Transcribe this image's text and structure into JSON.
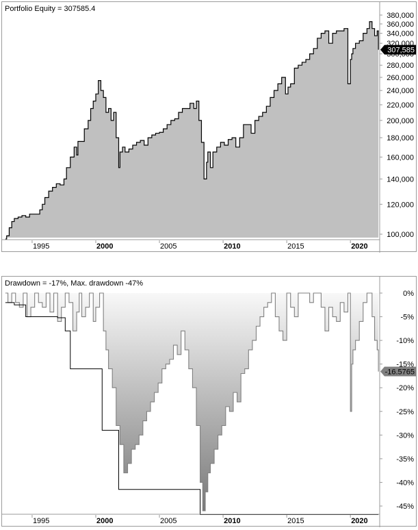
{
  "chart_data": [
    {
      "type": "area",
      "title": "Portfolio Equity = 307585.4",
      "xlabel": "",
      "ylabel": "",
      "yscale": "log",
      "ylim": [
        96000,
        392000
      ],
      "xlim": [
        1992.8,
        2022.3
      ],
      "x_ticks": [
        "1995",
        "2000",
        "2005",
        "2010",
        "2015",
        "2020"
      ],
      "x_ticks_bold": [
        "2000",
        "2010",
        "2020"
      ],
      "y_ticks": [
        "100,000",
        "120,000",
        "140,000",
        "160,000",
        "180,000",
        "200,000",
        "220,000",
        "240,000",
        "260,000",
        "280,000",
        "300,000",
        "320,000",
        "340,000",
        "360,000",
        "380,000"
      ],
      "y_tick_values": [
        100000,
        120000,
        140000,
        160000,
        180000,
        200000,
        220000,
        240000,
        260000,
        280000,
        300000,
        320000,
        340000,
        360000,
        380000
      ],
      "last_value_label": "307,585",
      "last_value": 307585.4,
      "fill_color": "#c0c0c0",
      "line_color": "#000000",
      "grid": false,
      "series": [
        {
          "name": "Portfolio Equity",
          "x": [
            1992.9,
            1993.0,
            1993.2,
            1993.4,
            1993.6,
            1993.9,
            1994.2,
            1994.5,
            1994.8,
            1995.0,
            1995.3,
            1995.6,
            1995.8,
            1996.0,
            1996.3,
            1996.6,
            1996.9,
            1997.2,
            1997.5,
            1997.7,
            1998.0,
            1998.3,
            1998.5,
            1998.6,
            1998.8,
            1999.1,
            1999.4,
            1999.6,
            1999.8,
            2000.0,
            2000.2,
            2000.4,
            2000.6,
            2000.8,
            2001.0,
            2001.2,
            2001.4,
            2001.6,
            2001.8,
            2001.9,
            2002.1,
            2002.3,
            2002.6,
            2002.9,
            2003.2,
            2003.5,
            2003.8,
            2004.1,
            2004.4,
            2004.7,
            2005.0,
            2005.3,
            2005.6,
            2005.9,
            2006.2,
            2006.5,
            2006.8,
            2007.1,
            2007.4,
            2007.7,
            2007.9,
            2008.1,
            2008.3,
            2008.5,
            2008.7,
            2008.8,
            2009.0,
            2009.2,
            2009.5,
            2009.8,
            2010.1,
            2010.4,
            2010.7,
            2011.0,
            2011.3,
            2011.6,
            2011.9,
            2012.2,
            2012.5,
            2012.8,
            2013.1,
            2013.4,
            2013.7,
            2014.0,
            2014.3,
            2014.6,
            2014.9,
            2015.1,
            2015.3,
            2015.6,
            2015.9,
            2016.2,
            2016.5,
            2016.8,
            2017.1,
            2017.4,
            2017.7,
            2018.0,
            2018.3,
            2018.6,
            2018.9,
            2019.2,
            2019.5,
            2019.8,
            2020.0,
            2020.1,
            2020.2,
            2020.4,
            2020.7,
            2021.0,
            2021.3,
            2021.5,
            2021.7,
            2021.9,
            2022.1,
            2022.2
          ],
          "values": [
            97000,
            99000,
            104000,
            108000,
            110000,
            111000,
            112000,
            111000,
            113000,
            113000,
            113000,
            116000,
            120000,
            125000,
            130000,
            133000,
            136000,
            135000,
            140000,
            150000,
            160000,
            170000,
            162000,
            176000,
            176000,
            190000,
            200000,
            215000,
            225000,
            235000,
            255000,
            240000,
            230000,
            210000,
            215000,
            200000,
            210000,
            180000,
            150000,
            165000,
            170000,
            165000,
            168000,
            172000,
            175000,
            177000,
            172000,
            180000,
            183000,
            185000,
            186000,
            190000,
            195000,
            200000,
            202000,
            210000,
            215000,
            215000,
            222000,
            215000,
            225000,
            200000,
            175000,
            140000,
            155000,
            165000,
            150000,
            165000,
            170000,
            175000,
            172000,
            178000,
            180000,
            170000,
            180000,
            195000,
            195000,
            185000,
            200000,
            205000,
            210000,
            218000,
            230000,
            240000,
            250000,
            260000,
            235000,
            245000,
            250000,
            275000,
            280000,
            285000,
            290000,
            300000,
            310000,
            330000,
            340000,
            345000,
            320000,
            340000,
            345000,
            345000,
            350000,
            250000,
            290000,
            300000,
            310000,
            320000,
            325000,
            340000,
            350000,
            365000,
            350000,
            335000,
            345000,
            307585
          ]
        }
      ]
    },
    {
      "type": "area",
      "title": "Drawdown = -17%, Max. drawdown -47%",
      "xlabel": "",
      "ylabel": "",
      "ylim": [
        -49,
        2
      ],
      "xlim": [
        1992.8,
        2022.3
      ],
      "x_ticks": [
        "1995",
        "2000",
        "2005",
        "2010",
        "2015",
        "2020"
      ],
      "x_ticks_bold": [
        "2000",
        "2010",
        "2020"
      ],
      "y_ticks": [
        "0%",
        "-5%",
        "-10%",
        "-15%",
        "-20%",
        "-25%",
        "-30%",
        "-35%",
        "-40%",
        "-45%"
      ],
      "y_tick_values": [
        0,
        -5,
        -10,
        -15,
        -20,
        -25,
        -30,
        -35,
        -40,
        -45
      ],
      "last_value_label": "-16.5765",
      "last_value": -16.5765,
      "line_color": "#808080",
      "max_dd_line_color": "#000000",
      "gradient": [
        "#f8f8f8",
        "#777777"
      ],
      "grid": false,
      "series": [
        {
          "name": "Drawdown",
          "x": [
            1992.9,
            1993.1,
            1993.4,
            1993.7,
            1994.0,
            1994.3,
            1994.6,
            1994.9,
            1995.2,
            1995.5,
            1995.8,
            1996.1,
            1996.4,
            1996.7,
            1997.0,
            1997.3,
            1997.6,
            1997.9,
            1998.2,
            1998.5,
            1998.7,
            1998.9,
            1999.2,
            1999.5,
            1999.8,
            2000.0,
            2000.3,
            2000.6,
            2000.8,
            2001.0,
            2001.3,
            2001.6,
            2001.9,
            2002.2,
            2002.5,
            2002.8,
            2003.1,
            2003.4,
            2003.7,
            2004.0,
            2004.3,
            2004.6,
            2004.9,
            2005.2,
            2005.5,
            2005.8,
            2006.1,
            2006.4,
            2006.7,
            2007.0,
            2007.3,
            2007.6,
            2007.9,
            2008.2,
            2008.4,
            2008.6,
            2008.8,
            2009.0,
            2009.3,
            2009.6,
            2009.9,
            2010.2,
            2010.5,
            2010.8,
            2011.1,
            2011.4,
            2011.7,
            2012.0,
            2012.3,
            2012.6,
            2012.9,
            2013.2,
            2013.5,
            2013.8,
            2014.1,
            2014.4,
            2014.7,
            2015.0,
            2015.3,
            2015.6,
            2015.9,
            2016.2,
            2016.5,
            2016.8,
            2017.1,
            2017.4,
            2017.7,
            2018.0,
            2018.3,
            2018.6,
            2018.9,
            2019.2,
            2019.5,
            2019.8,
            2020.0,
            2020.1,
            2020.2,
            2020.4,
            2020.7,
            2021.0,
            2021.3,
            2021.5,
            2021.7,
            2021.9,
            2022.1,
            2022.2
          ],
          "values": [
            0,
            -2,
            0,
            -2,
            -3,
            0,
            -5,
            -3,
            0,
            -2,
            -3,
            0,
            -4,
            0,
            -6,
            -3,
            0,
            -2,
            -8,
            -4,
            0,
            -5,
            -3,
            0,
            -6,
            -3,
            0,
            -8,
            -12,
            -16,
            -20,
            -28,
            -32,
            -38,
            -36,
            -33,
            -32,
            -30,
            -27,
            -25,
            -23,
            -21,
            -19,
            -16,
            -15,
            -14,
            -11,
            -13,
            -8,
            -12,
            -16,
            -20,
            -28,
            -40,
            -46,
            -42,
            -38,
            -36,
            -33,
            -30,
            -28,
            -24,
            -25,
            -21,
            -23,
            -17,
            -16,
            -12,
            -10,
            -7,
            -5,
            -3,
            -2,
            0,
            -5,
            -8,
            -10,
            0,
            -3,
            -5,
            0,
            0,
            0,
            -2,
            0,
            0,
            -3,
            -8,
            -3,
            -5,
            -6,
            -2,
            -4,
            0,
            -25,
            -15,
            -12,
            -10,
            -6,
            -2,
            0,
            0,
            -5,
            -10,
            -12,
            -16.58
          ]
        },
        {
          "name": "Max drawdown",
          "x": [
            1992.9,
            1993.6,
            1993.6,
            1994.5,
            1994.5,
            1997.0,
            1997.0,
            1997.6,
            1997.6,
            1998.0,
            1998.0,
            2000.5,
            2000.5,
            2001.8,
            2001.8,
            2008.2,
            2008.2,
            2022.2
          ],
          "values": [
            -2,
            -2,
            -2.5,
            -2.5,
            -5,
            -5,
            -5.2,
            -5.2,
            -8,
            -8,
            -16,
            -16,
            -29,
            -29,
            -41.5,
            -41.5,
            -46.8,
            -46.8
          ]
        }
      ]
    }
  ],
  "equity_panel": {
    "title": "Portfolio Equity = 307585.4",
    "value_badge": "307,585"
  },
  "drawdown_panel": {
    "title": "Drawdown = -17%, Max. drawdown -47%",
    "value_badge": "-16.5765"
  }
}
